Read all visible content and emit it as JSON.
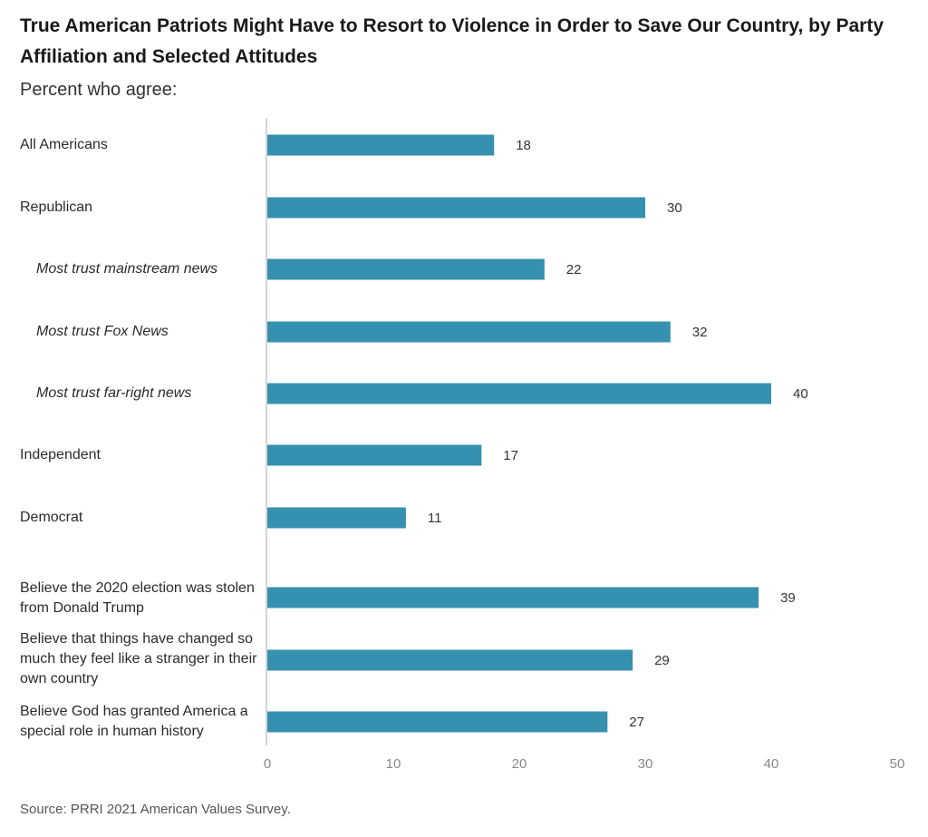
{
  "chart_data": {
    "type": "bar",
    "orientation": "horizontal",
    "title": "True American Patriots Might Have to Resort to Violence in Order to Save Our Country, by Party Affiliation and Selected Attitudes",
    "subtitle": "Percent who agree:",
    "categories": [
      "All Americans",
      "Republican",
      "Most trust mainstream news",
      "Most trust Fox News",
      "Most trust far-right news",
      "Independent",
      "Democrat",
      "Believe the 2020 election was stolen from Donald Trump",
      "Believe that things have changed so much they feel like a stranger in their own country",
      "Believe God has granted America a special role in human history"
    ],
    "values": [
      18,
      30,
      22,
      32,
      40,
      17,
      11,
      39,
      29,
      27
    ],
    "subgroup": [
      false,
      false,
      true,
      true,
      true,
      false,
      false,
      false,
      false,
      false
    ],
    "xlim": [
      0,
      50
    ],
    "xticks": [
      0,
      10,
      20,
      30,
      40,
      50
    ],
    "xlabel": "",
    "ylabel": "",
    "grid": false,
    "bar_color": "#3690b0",
    "source": "Source: PRRI 2021 American Values Survey."
  }
}
